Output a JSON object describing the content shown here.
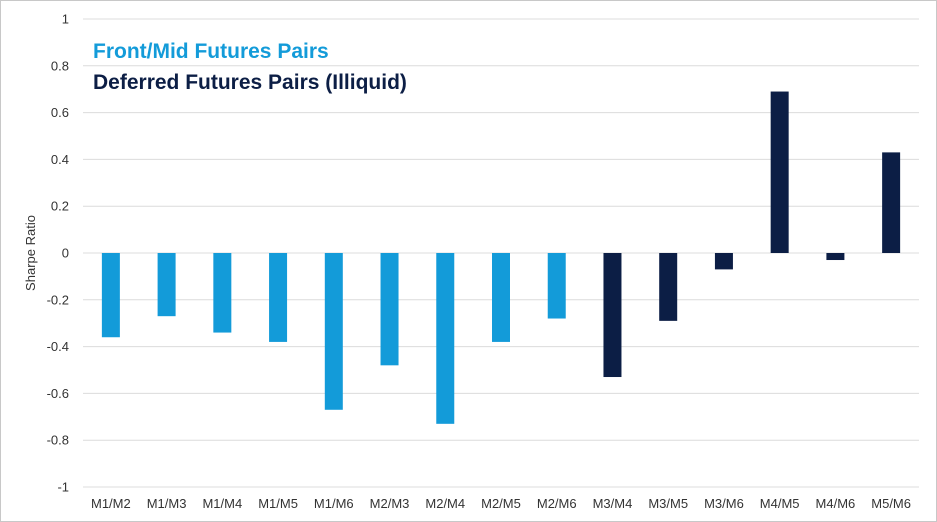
{
  "chart_data": {
    "type": "bar",
    "title": "",
    "xlabel": "",
    "ylabel": "Sharpe Ratio",
    "ylim": [
      -1,
      1
    ],
    "yticks": [
      "1",
      "0.8",
      "0.6",
      "0.4",
      "0.2",
      "0",
      "-0.2",
      "-0.4",
      "-0.6",
      "-0.8",
      "-1"
    ],
    "grid": true,
    "legend_placement": "top-left",
    "categories": [
      "M1/M2",
      "M1/M3",
      "M1/M4",
      "M1/M5",
      "M1/M6",
      "M2/M3",
      "M2/M4",
      "M2/M5",
      "M2/M6",
      "M3/M4",
      "M3/M5",
      "M3/M6",
      "M4/M5",
      "M4/M6",
      "M5/M6"
    ],
    "series": [
      {
        "name": "Front/Mid Futures Pairs",
        "color": "#139bd9",
        "values": [
          -0.36,
          -0.27,
          -0.34,
          -0.38,
          -0.67,
          -0.48,
          -0.73,
          -0.38,
          -0.28,
          null,
          null,
          null,
          null,
          null,
          null
        ]
      },
      {
        "name": "Deferred Futures Pairs (Illiquid)",
        "color": "#0c1e45",
        "values": [
          null,
          null,
          null,
          null,
          null,
          null,
          null,
          null,
          null,
          -0.53,
          -0.29,
          -0.07,
          0.69,
          -0.03,
          0.43
        ]
      }
    ]
  },
  "colors": {
    "grid": "#dcdcdc",
    "text": "#333333"
  }
}
